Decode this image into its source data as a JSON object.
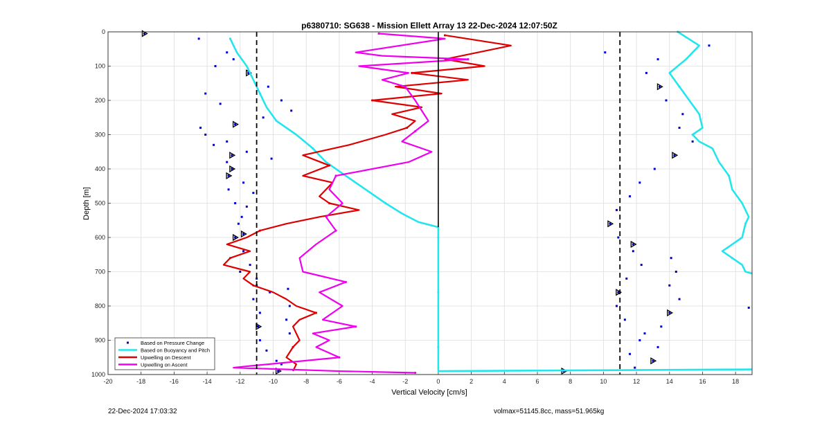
{
  "chart_data": {
    "type": "scatter",
    "title": "p6380710: SG638 - Mission Ellett Array 13 22-Dec-2024 12:07:50Z",
    "xlabel": "Vertical Velocity [cm/s]",
    "ylabel": "Depth [m]",
    "xlim": [
      -20,
      19
    ],
    "ylim": [
      0,
      1000
    ],
    "y_reversed": true,
    "grid": true,
    "legend_position": "bottom-left",
    "xticks": [
      -20,
      -18,
      -16,
      -14,
      -12,
      -10,
      -8,
      -6,
      -4,
      -2,
      0,
      2,
      4,
      6,
      8,
      10,
      12,
      14,
      16,
      18
    ],
    "yticks": [
      0,
      100,
      200,
      300,
      400,
      500,
      600,
      700,
      800,
      900,
      1000
    ],
    "reference_lines": [
      -11,
      0,
      11
    ],
    "colors": {
      "pressure": "#0000cc",
      "buoyancy": "#22e5ee",
      "descent": "#dd0000",
      "ascent": "#ee00ee",
      "zero_line": "#000000"
    },
    "series": [
      {
        "name": "Based on Pressure Change",
        "style": "points",
        "x": [
          -17.8,
          -14.5,
          -12.8,
          -13.5,
          -12.4,
          -11.5,
          -10.3,
          -9.5,
          -8.9,
          -10.6,
          -12.3,
          -14.1,
          -12.8,
          -11.6,
          -10.1,
          -12.5,
          -13.6,
          -14.4,
          -14.1,
          -13.2,
          -12.7,
          -12.7,
          -12.3,
          -11.9,
          -12.1,
          -12.3,
          -11.8,
          -11.4,
          -11.0,
          -10.2,
          -11.8,
          -11.2,
          -11.6,
          -11.8,
          -12.8,
          -12.5,
          -12.0,
          -11.0,
          -11.2,
          -10.8,
          -10.9,
          -10.8,
          -10.4,
          -9.8,
          -9.5,
          -9.7,
          -9.0,
          -9.2,
          -9.0,
          -9.1,
          7.6,
          18.8,
          16.4,
          13.3,
          12.6,
          13.4,
          13.8,
          14.8,
          14.6,
          15.4,
          14.3,
          13.1,
          12.2,
          11.6,
          10.8,
          10.4,
          10.9,
          11.8,
          12.3,
          11.4,
          10.9,
          10.8,
          11.3,
          12.5,
          13.3,
          13.0,
          11.9,
          11.6,
          12.2,
          13.5,
          14.0,
          14.6,
          14.0,
          14.4,
          14.1,
          11.8,
          10.1
        ],
        "y": [
          5,
          20,
          60,
          100,
          80,
          120,
          160,
          200,
          230,
          250,
          270,
          300,
          320,
          350,
          370,
          400,
          330,
          280,
          180,
          210,
          420,
          460,
          500,
          540,
          560,
          600,
          640,
          680,
          720,
          760,
          590,
          470,
          510,
          440,
          380,
          360,
          700,
          740,
          780,
          820,
          860,
          900,
          930,
          960,
          970,
          990,
          880,
          840,
          800,
          750,
          990,
          805,
          40,
          80,
          120,
          160,
          200,
          240,
          280,
          320,
          360,
          400,
          440,
          480,
          520,
          560,
          600,
          640,
          680,
          720,
          760,
          800,
          840,
          880,
          920,
          960,
          980,
          940,
          900,
          860,
          820,
          780,
          740,
          700,
          660,
          620,
          60
        ]
      },
      {
        "name": "Based on Buoyancy and Pitch",
        "style": "line",
        "x": [
          -12.6,
          -12.2,
          -11.6,
          -11.2,
          -10.8,
          -10.4,
          -9.8,
          -8.6,
          -7.6,
          -6.8,
          -5.6,
          -4.4,
          -3.2,
          -2.2,
          -1.2,
          0.0,
          0.0,
          0.0,
          0.0,
          0.0,
          0.0,
          0.0,
          0.0,
          0.0,
          0.0,
          0.0,
          0.0,
          19.0
        ],
        "y": [
          20,
          60,
          100,
          140,
          180,
          220,
          260,
          300,
          340,
          380,
          420,
          460,
          500,
          530,
          555,
          570,
          600,
          640,
          680,
          720,
          760,
          800,
          840,
          880,
          920,
          960,
          990,
          985
        ]
      },
      {
        "name": "Based on Buoyancy and Pitch",
        "style": "line",
        "x": [
          14.5,
          15.8,
          15.0,
          14.0,
          14.6,
          15.2,
          15.8,
          16.0,
          15.4,
          15.8,
          16.6,
          17.0,
          17.6,
          17.8,
          18.4,
          18.8,
          18.6,
          18.4,
          17.8,
          17.2,
          17.8,
          18.4,
          18.6,
          19.0
        ],
        "y": [
          0,
          40,
          80,
          120,
          160,
          200,
          240,
          280,
          300,
          320,
          340,
          380,
          420,
          460,
          500,
          540,
          560,
          600,
          620,
          640,
          660,
          680,
          700,
          705
        ]
      },
      {
        "name": "Upwelling on Descent",
        "style": "line",
        "x": [
          0.4,
          4.4,
          0.4,
          2.8,
          -1.6,
          1.8,
          -2.6,
          0.2,
          -4.0,
          -1.0,
          -2.8,
          -1.4,
          -1.9,
          -3.2,
          -5.4,
          -8.2,
          -6.6,
          -8.2,
          -6.4,
          -7.2,
          -6.6,
          -4.8,
          -7.2,
          -9.2,
          -10.8,
          -11.6,
          -12.8,
          -11.4,
          -12.6,
          -13.0,
          -11.4,
          -11.8,
          -11.2,
          -10.0,
          -9.2,
          -8.6,
          -7.4,
          -8.4,
          -8.8,
          -8.4,
          -8.8,
          -9.2,
          -8.6,
          -8.8
        ],
        "y": [
          10,
          40,
          80,
          100,
          120,
          140,
          160,
          180,
          200,
          220,
          240,
          260,
          280,
          300,
          330,
          360,
          390,
          420,
          440,
          480,
          500,
          520,
          540,
          560,
          580,
          600,
          620,
          640,
          660,
          680,
          700,
          720,
          740,
          760,
          780,
          800,
          820,
          840,
          860,
          900,
          920,
          950,
          970,
          990
        ]
      },
      {
        "name": "Upwelling on Ascent",
        "style": "line",
        "x": [
          -3.6,
          0.4,
          -5.0,
          -3.4,
          1.8,
          -4.8,
          -1.8,
          -3.4,
          -2.0,
          -1.4,
          -1.0,
          -0.6,
          -1.4,
          -2.2,
          -0.4,
          -1.8,
          -6.2,
          -6.6,
          -5.8,
          -6.8,
          -6.2,
          -7.4,
          -8.4,
          -8.2,
          -5.6,
          -7.2,
          -5.8,
          -7.0,
          -5.0,
          -7.6,
          -6.6,
          -7.4,
          -6.0,
          -11.4,
          -12.4,
          -6.0,
          -1.4
        ],
        "y": [
          5,
          20,
          60,
          70,
          80,
          100,
          120,
          140,
          160,
          200,
          230,
          260,
          290,
          320,
          350,
          380,
          420,
          460,
          500,
          540,
          580,
          620,
          660,
          700,
          730,
          760,
          800,
          840,
          860,
          880,
          900,
          920,
          950,
          975,
          980,
          990,
          995
        ]
      }
    ],
    "annotations": {
      "timestamp": "22-Dec-2024 17:03:32",
      "specs": "volmax=51145.8cc, mass=51.965kg"
    }
  }
}
